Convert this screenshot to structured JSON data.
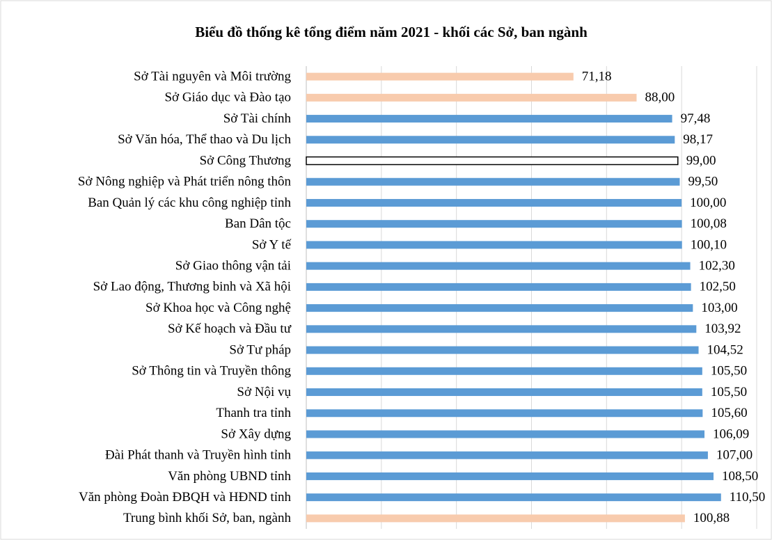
{
  "chart_data": {
    "type": "barh",
    "title": "Biểu đồ thống kê tổng điểm năm 2021 - khối các Sở, ban ngành",
    "categories": [
      "Sở Tài nguyên và Môi trường",
      "Sở Giáo dục và Đào tạo",
      "Sở Tài chính",
      "Sở Văn hóa, Thể thao và Du lịch",
      "Sở Công Thương",
      "Sở Nông nghiệp và Phát triển nông thôn",
      "Ban Quản lý các khu công nghiệp tỉnh",
      "Ban Dân tộc",
      "Sở Y tế",
      "Sở Giao thông vận tải",
      "Sở Lao động, Thương binh và Xã hội",
      "Sở Khoa học và Công nghệ",
      "Sở Kế hoạch và Đầu tư",
      "Sở Tư pháp",
      "Sở Thông tin và Truyền thông",
      "Sở Nội vụ",
      "Thanh tra tỉnh",
      "Sở Xây dựng",
      "Đài Phát thanh và Truyền hình tỉnh",
      "Văn phòng UBND tỉnh",
      "Văn phòng Đoàn ĐBQH và HĐND tỉnh",
      "Trung bình khối Sở, ban, ngành"
    ],
    "values": [
      71.18,
      88.0,
      97.48,
      98.17,
      99.0,
      99.5,
      100.0,
      100.08,
      100.1,
      102.3,
      102.5,
      103.0,
      103.92,
      104.52,
      105.5,
      105.5,
      105.6,
      106.09,
      107.0,
      108.5,
      110.5,
      100.88
    ],
    "value_labels": [
      "71,18",
      "88,00",
      "97,48",
      "98,17",
      "99,00",
      "99,50",
      "100,00",
      "100,08",
      "100,10",
      "102,30",
      "102,50",
      "103,00",
      "103,92",
      "104,52",
      "105,50",
      "105,50",
      "105,60",
      "106,09",
      "107,00",
      "108,50",
      "110,50",
      "100,88"
    ],
    "colors": [
      "#f8cbad",
      "#f8cbad",
      "#5b9bd5",
      "#5b9bd5",
      "#ffffff",
      "#5b9bd5",
      "#5b9bd5",
      "#5b9bd5",
      "#5b9bd5",
      "#5b9bd5",
      "#5b9bd5",
      "#5b9bd5",
      "#5b9bd5",
      "#5b9bd5",
      "#5b9bd5",
      "#5b9bd5",
      "#5b9bd5",
      "#5b9bd5",
      "#5b9bd5",
      "#5b9bd5",
      "#5b9bd5",
      "#f8cbad"
    ],
    "edgecolors": [
      "#f8cbad",
      "#f8cbad",
      "#5b9bd5",
      "#5b9bd5",
      "#000000",
      "#5b9bd5",
      "#5b9bd5",
      "#5b9bd5",
      "#5b9bd5",
      "#5b9bd5",
      "#5b9bd5",
      "#5b9bd5",
      "#5b9bd5",
      "#5b9bd5",
      "#5b9bd5",
      "#5b9bd5",
      "#5b9bd5",
      "#5b9bd5",
      "#5b9bd5",
      "#5b9bd5",
      "#5b9bd5",
      "#f8cbad"
    ],
    "xlim": [
      0,
      120
    ],
    "xticks": [
      0,
      20,
      40,
      60,
      80,
      100,
      120
    ],
    "grid": true
  }
}
